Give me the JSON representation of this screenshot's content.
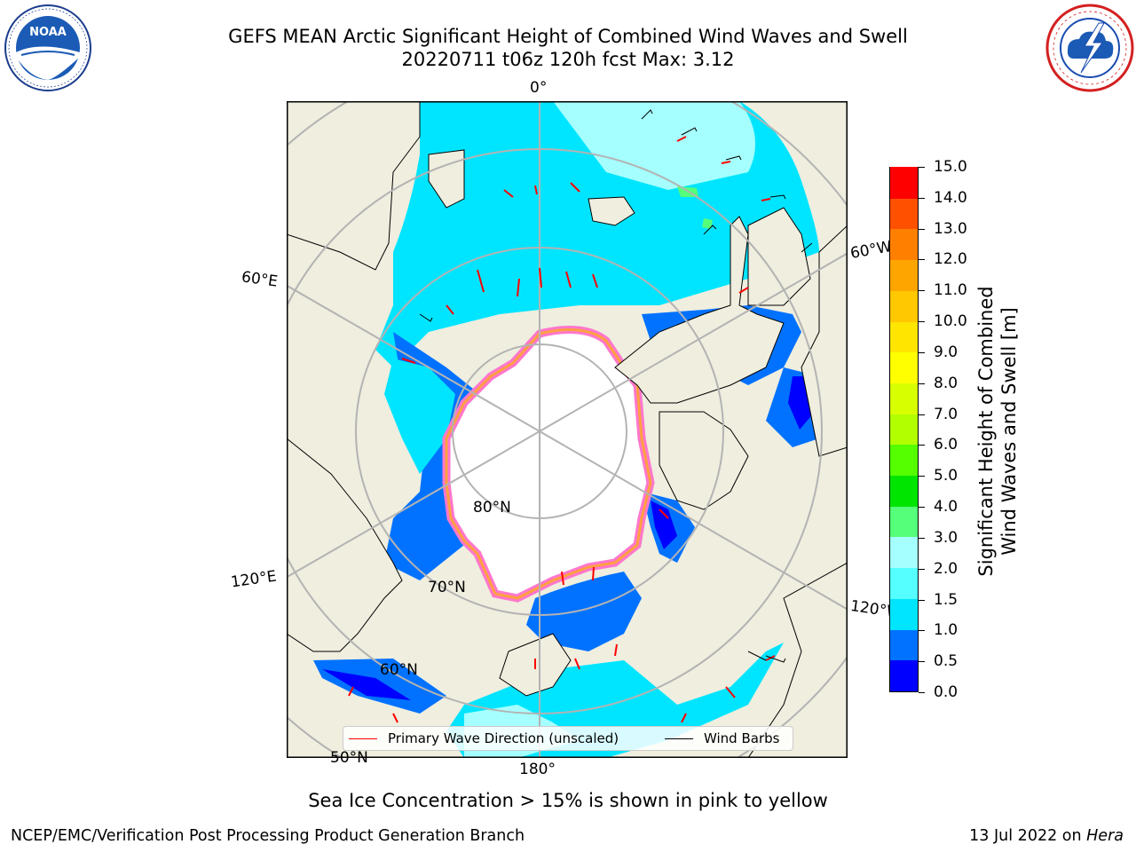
{
  "header": {
    "title_line1": "GEFS MEAN Arctic Significant Height of Combined Wind Waves and Swell",
    "title_line2": "20220711 t06z 120h fcst   Max: 3.12"
  },
  "logos": {
    "left": "NOAA",
    "left_ring_text": "NATIONAL OCEANIC AND ATMOSPHERIC ADMINISTRATION · U.S. DEPARTMENT OF COMMERCE",
    "right_ring_text": "NATIONAL WEATHER SERVICE"
  },
  "map": {
    "projection": "north-polar-stereographic",
    "lon_labels": [
      "0°",
      "60°E",
      "60°W",
      "120°E",
      "120°W",
      "180°"
    ],
    "lat_labels": [
      "80°N",
      "70°N",
      "60°N",
      "50°N"
    ],
    "colors": {
      "land": "#efeedf",
      "ice": "#ffffff",
      "graticule": "#b3b3b3",
      "coast": "#000000"
    }
  },
  "colorbar": {
    "title_line1": "Significant Height of Combined",
    "title_line2": "Wind Waves and Swell [m]",
    "tick_labels": [
      "15.0",
      "14.0",
      "13.0",
      "12.0",
      "11.0",
      "10.0",
      "9.0",
      "8.0",
      "7.0",
      "6.0",
      "5.0",
      "4.0",
      "3.0",
      "2.0",
      "1.5",
      "1.0",
      "0.5",
      "0.0"
    ],
    "levels": [
      0.0,
      0.5,
      1.0,
      1.5,
      2.0,
      3.0,
      4.0,
      5.0,
      6.0,
      7.0,
      8.0,
      9.0,
      10.0,
      11.0,
      12.0,
      13.0,
      14.0,
      15.0
    ],
    "colors": [
      "#0000ff",
      "#0072ff",
      "#00e5ff",
      "#55ffff",
      "#a6ffff",
      "#55ff7a",
      "#00e500",
      "#55ff00",
      "#b2ff00",
      "#d8ff00",
      "#ffff00",
      "#ffe500",
      "#ffc800",
      "#ffa500",
      "#ff8000",
      "#ff5000",
      "#ff0000"
    ]
  },
  "legend": {
    "wave_label": "Primary Wave Direction (unscaled)",
    "wind_label": "Wind Barbs",
    "wave_color": "#ff0000",
    "wind_color": "#000000"
  },
  "subtitle": "Sea Ice Concentration > 15% is shown in pink to yellow",
  "footer": {
    "left": "NCEP/EMC/Verification Post Processing Product Generation Branch",
    "date": "13 Jul 2022 on ",
    "machine": "Hera"
  }
}
